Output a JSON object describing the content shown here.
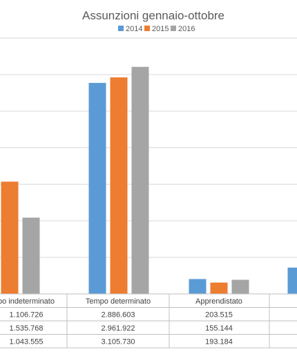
{
  "chart_data": {
    "type": "bar",
    "title": "Assunzioni gennaio-ottobre",
    "categories": [
      "po indeterminato",
      "Tempo determinato",
      "Apprendistato",
      ""
    ],
    "series": [
      {
        "name": "2014",
        "color": "#5b9bd5",
        "values": [
          1106726,
          2886603,
          203515,
          360000
        ]
      },
      {
        "name": "2015",
        "color": "#ed7d31",
        "values": [
          1535768,
          2961922,
          155144,
          null
        ]
      },
      {
        "name": "2016",
        "color": "#a5a5a5",
        "values": [
          1043555,
          3105730,
          193184,
          null
        ]
      }
    ],
    "table": {
      "rows": [
        [
          "1.106.726",
          "2.886.603",
          "203.515",
          ""
        ],
        [
          "1.535.768",
          "2.961.922",
          "155.144",
          ""
        ],
        [
          "1.043.555",
          "3.105.730",
          "193.184",
          ""
        ]
      ]
    },
    "ylim": [
      0,
      3500000
    ],
    "gridlines": true,
    "legend_position": "top"
  }
}
